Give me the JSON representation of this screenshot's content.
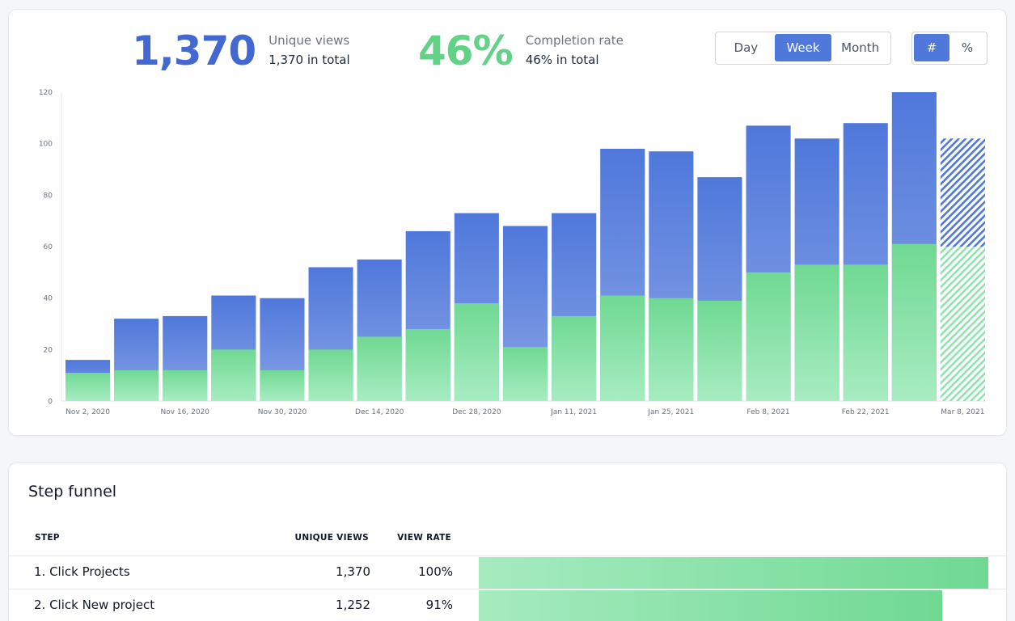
{
  "stats": {
    "views": {
      "value": "1,370",
      "label": "Unique views",
      "sub": "1,370 in total"
    },
    "completion": {
      "value": "46%",
      "label": "Completion rate",
      "sub": "46% in total"
    }
  },
  "period_toggle": {
    "options": [
      "Day",
      "Week",
      "Month"
    ],
    "selected": "Week"
  },
  "unit_toggle": {
    "options": [
      "#",
      "%"
    ],
    "selected": "#"
  },
  "colors": {
    "views": "#4f78db",
    "completion": "#6fd992",
    "views_big": "#4468d1",
    "completion_big": "#63d287"
  },
  "chart_data": {
    "type": "bar",
    "stacked": "overlay",
    "ylim": [
      0,
      120
    ],
    "yticks": [
      0,
      20,
      40,
      60,
      80,
      100,
      120
    ],
    "xtick_labels": [
      "Nov 2, 2020",
      "Nov 16, 2020",
      "Nov 30, 2020",
      "Dec 14, 2020",
      "Dec 28, 2020",
      "Jan 11, 2021",
      "Jan 25, 2021",
      "Feb 8, 2021",
      "Feb 22, 2021",
      "Mar 8, 2021"
    ],
    "categories": [
      "Nov 2, 2020",
      "Nov 9, 2020",
      "Nov 16, 2020",
      "Nov 23, 2020",
      "Nov 30, 2020",
      "Dec 7, 2020",
      "Dec 14, 2020",
      "Dec 21, 2020",
      "Dec 28, 2020",
      "Jan 4, 2021",
      "Jan 11, 2021",
      "Jan 18, 2021",
      "Jan 25, 2021",
      "Feb 1, 2021",
      "Feb 8, 2021",
      "Feb 15, 2021",
      "Feb 22, 2021",
      "Mar 1, 2021",
      "Mar 8, 2021"
    ],
    "series": [
      {
        "values": [
          16,
          32,
          33,
          41,
          40,
          52,
          55,
          66,
          73,
          68,
          73,
          98,
          97,
          87,
          107,
          102,
          108,
          120,
          102
        ]
      },
      {
        "values": [
          11,
          12,
          12,
          20,
          12,
          20,
          25,
          28,
          38,
          21,
          33,
          41,
          40,
          39,
          50,
          53,
          53,
          61,
          60
        ]
      }
    ],
    "partial_last": true
  },
  "funnel": {
    "title": "Step funnel",
    "headers": {
      "step": "STEP",
      "views": "UNIQUE VIEWS",
      "rate": "VIEW RATE"
    },
    "rows": [
      {
        "step": "1. Click Projects",
        "views": "1,370",
        "rate": "100%",
        "fraction": 1.0
      },
      {
        "step": "2. Click New project",
        "views": "1,252",
        "rate": "91%",
        "fraction": 0.91
      }
    ]
  }
}
